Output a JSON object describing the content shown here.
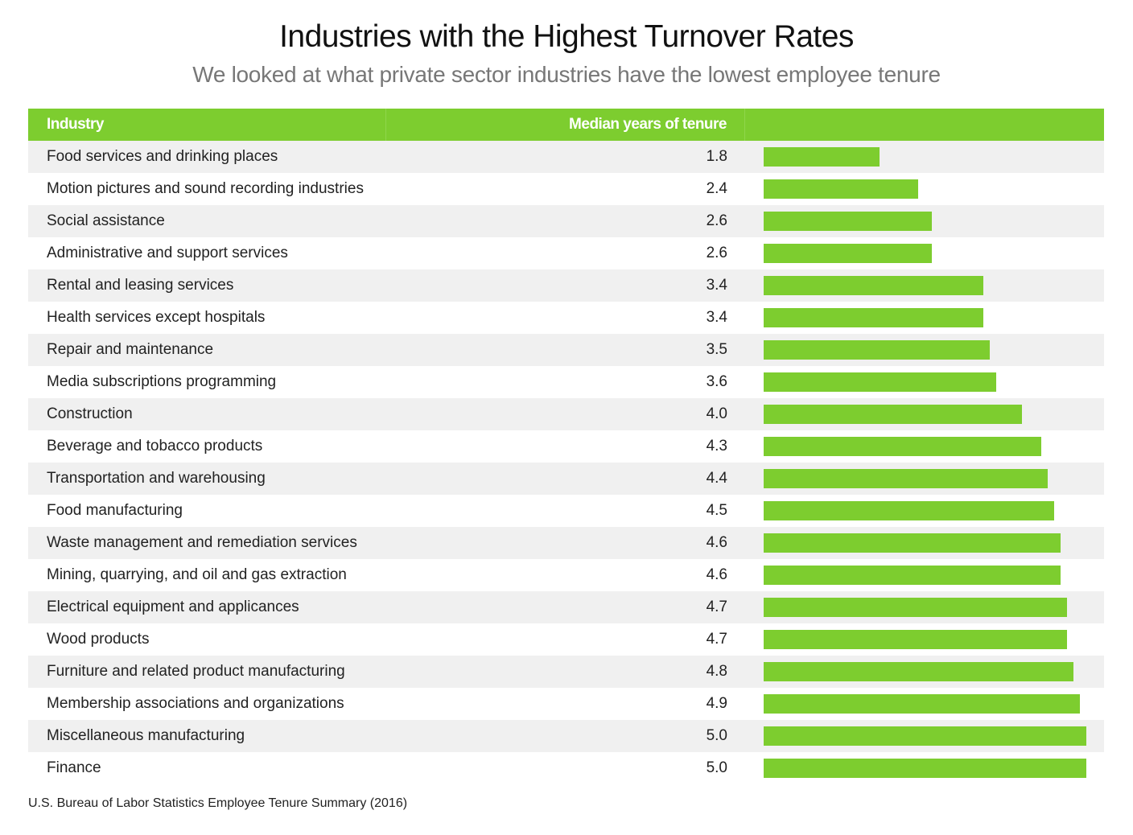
{
  "title": "Industries with the Highest Turnover Rates",
  "subtitle": "We looked at what private sector industries have the lowest employee tenure",
  "source": "U.S. Bureau of Labor Statistics Employee Tenure Summary (2016)",
  "chart_data": {
    "type": "bar",
    "orientation": "horizontal",
    "columns": [
      "Industry",
      "Median years of tenure"
    ],
    "categories": [
      "Food services and drinking places",
      "Motion pictures and sound recording industries",
      "Social assistance",
      "Administrative and support services",
      "Rental and leasing services",
      "Health services except hospitals",
      "Repair and maintenance",
      "Media subscriptions programming",
      "Construction",
      "Beverage and tobacco products",
      "Transportation and warehousing",
      "Food manufacturing",
      "Waste management and remediation services",
      "Mining, quarrying, and oil and gas extraction",
      "Electrical equipment and applicances",
      "Wood products",
      "Furniture and related product manufacturing",
      "Membership associations and organizations",
      "Miscellaneous manufacturing",
      "Finance"
    ],
    "values": [
      1.8,
      2.4,
      2.6,
      2.6,
      3.4,
      3.4,
      3.5,
      3.6,
      4.0,
      4.3,
      4.4,
      4.5,
      4.6,
      4.6,
      4.7,
      4.7,
      4.8,
      4.9,
      5.0,
      5.0
    ],
    "labels": [
      "1.8",
      "2.4",
      "2.6",
      "2.6",
      "3.4",
      "3.4",
      "3.5",
      "3.6",
      "4.0",
      "4.3",
      "4.4",
      "4.5",
      "4.6",
      "4.6",
      "4.7",
      "4.7",
      "4.8",
      "4.9",
      "5.0",
      "5.0"
    ],
    "xlim": [
      0,
      5.0
    ],
    "bar_color": "#7dcd2f",
    "header_color": "#7dcd2f"
  }
}
